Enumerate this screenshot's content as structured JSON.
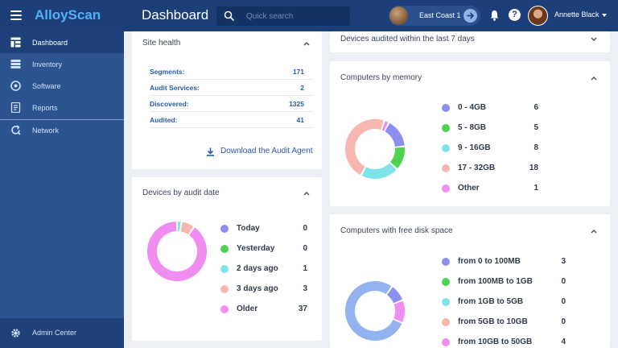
{
  "app": {
    "brand": "AlloyScan",
    "page_title": "Dashboard"
  },
  "search": {
    "placeholder": "Quick search"
  },
  "location": {
    "label": "East Coast 1"
  },
  "user": {
    "name": "Annette Black"
  },
  "sidebar": {
    "items": [
      {
        "label": "Dashboard",
        "icon": "dashboard-icon"
      },
      {
        "label": "Inventory",
        "icon": "inventory-icon"
      },
      {
        "label": "Software",
        "icon": "software-icon"
      },
      {
        "label": "Reports",
        "icon": "reports-icon"
      },
      {
        "label": "Network",
        "icon": "network-icon"
      }
    ],
    "admin": {
      "label": "Admin Center",
      "icon": "gear-icon"
    }
  },
  "site_health": {
    "title": "Site health",
    "rows": [
      {
        "key": "Segments:",
        "value": "171"
      },
      {
        "key": "Audit Services:",
        "value": "2"
      },
      {
        "key": "Discovered:",
        "value": "1325"
      },
      {
        "key": "Audited:",
        "value": "41"
      }
    ],
    "download_label": "Download the Audit Agent"
  },
  "audit_date": {
    "title": "Devices by audit date",
    "items": [
      {
        "label": "Today",
        "value": "0",
        "color": "#8c8ef0"
      },
      {
        "label": "Yesterday",
        "value": "0",
        "color": "#4fd24f"
      },
      {
        "label": "2 days ago",
        "value": "1",
        "color": "#7fe3ea"
      },
      {
        "label": "3 days ago",
        "value": "3",
        "color": "#f8b6b0"
      },
      {
        "label": "Older",
        "value": "37",
        "color": "#ef8ef0"
      }
    ]
  },
  "audited_7days": {
    "title": "Devices audited within the last 7 days"
  },
  "memory": {
    "title": "Computers by memory",
    "items": [
      {
        "label": "0 - 4GB",
        "value": "6",
        "color": "#8c8ef0"
      },
      {
        "label": "5 - 8GB",
        "value": "5",
        "color": "#4fd24f"
      },
      {
        "label": "9 - 16GB",
        "value": "8",
        "color": "#7fe3ea"
      },
      {
        "label": "17 - 32GB",
        "value": "18",
        "color": "#f8b6b0"
      },
      {
        "label": "Other",
        "value": "1",
        "color": "#ef8ef0"
      }
    ]
  },
  "disk": {
    "title": "Computers with free disk space",
    "items": [
      {
        "label": "from 0 to 100MB",
        "value": "3",
        "color": "#8c8ef0"
      },
      {
        "label": "from 100MB to 1GB",
        "value": "0",
        "color": "#4fd24f"
      },
      {
        "label": "from 1GB to 5GB",
        "value": "0",
        "color": "#7fe3ea"
      },
      {
        "label": "from 5GB to 10GB",
        "value": "0",
        "color": "#f8b6b0"
      },
      {
        "label": "from 10GB to 50GB",
        "value": "4",
        "color": "#ef8ef0"
      }
    ],
    "visible_slices": [
      {
        "value": 3,
        "color": "#8c8ef0"
      },
      {
        "value": 4,
        "color": "#ef8ef0"
      },
      {
        "value": 25,
        "color": "#93b3f0"
      }
    ]
  }
}
